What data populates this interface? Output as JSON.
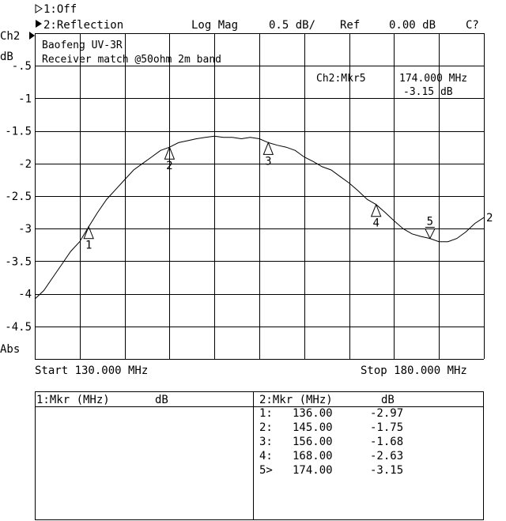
{
  "header": {
    "ch1_status": "1:Off",
    "ch2_status": "2:Reflection",
    "format": "Log Mag",
    "scale": "0.5 dB/",
    "ref_label": "Ref",
    "ref_value": "0.00 dB",
    "cal_status": "C?",
    "channel_label": "Ch2",
    "unit_label": "dB",
    "abs_label": "Abs"
  },
  "annotation": {
    "line1": "Baofeng UV-3R",
    "line2": "Receiver match @50ohm 2m band"
  },
  "active_marker": {
    "label": "Ch2:Mkr5",
    "freq": "174.000 MHz",
    "value": "-3.15 dB"
  },
  "footer": {
    "start": "Start 130.000 MHz",
    "stop": "Stop 180.000 MHz"
  },
  "marker_table": {
    "ch1_header_mkr": "1:Mkr (MHz)",
    "ch1_header_db": "dB",
    "ch2_header_mkr": "2:Mkr (MHz)",
    "ch2_header_db": "dB",
    "rows": [
      {
        "id": "1:",
        "freq": "136.00",
        "db": "-2.97"
      },
      {
        "id": "2:",
        "freq": "145.00",
        "db": "-1.75"
      },
      {
        "id": "3:",
        "freq": "156.00",
        "db": "-1.68"
      },
      {
        "id": "4:",
        "freq": "168.00",
        "db": "-2.63"
      },
      {
        "id": "5>",
        "freq": "174.00",
        "db": "-3.15"
      }
    ]
  },
  "chart_data": {
    "type": "line",
    "xlabel": "",
    "ylabel": "dB",
    "xlim": [
      130,
      180
    ],
    "ylim": [
      -5,
      0
    ],
    "y_ticks": [
      "-.5",
      "-1",
      "-1.5",
      "-2",
      "-2.5",
      "-3",
      "-3.5",
      "-4",
      "-4.5"
    ],
    "y_tick_values": [
      -0.5,
      -1,
      -1.5,
      -2,
      -2.5,
      -3,
      -3.5,
      -4,
      -4.5
    ],
    "x_divisions": 10,
    "grid": true,
    "trace_end_label": "2",
    "series": [
      {
        "x": [
          130,
          131,
          132,
          133,
          134,
          135,
          136,
          137,
          138,
          139,
          140,
          141,
          142,
          143,
          144,
          145,
          146,
          147,
          148,
          149,
          150,
          151,
          152,
          153,
          154,
          155,
          156,
          157,
          158,
          159,
          160,
          161,
          162,
          163,
          164,
          165,
          166,
          167,
          168,
          169,
          170,
          171,
          172,
          173,
          174,
          175,
          176,
          177,
          178,
          179,
          180
        ],
        "y": [
          -4.08,
          -3.95,
          -3.75,
          -3.55,
          -3.35,
          -3.2,
          -2.97,
          -2.75,
          -2.55,
          -2.4,
          -2.25,
          -2.1,
          -2.0,
          -1.9,
          -1.8,
          -1.75,
          -1.68,
          -1.65,
          -1.62,
          -1.6,
          -1.58,
          -1.6,
          -1.6,
          -1.62,
          -1.6,
          -1.62,
          -1.68,
          -1.72,
          -1.75,
          -1.8,
          -1.9,
          -1.97,
          -2.05,
          -2.1,
          -2.2,
          -2.3,
          -2.42,
          -2.55,
          -2.63,
          -2.75,
          -2.88,
          -3.0,
          -3.08,
          -3.12,
          -3.15,
          -3.2,
          -3.2,
          -3.15,
          -3.05,
          -2.92,
          -2.83
        ]
      }
    ],
    "markers": [
      {
        "label": "1",
        "x": 136,
        "y": -2.97,
        "direction": "up"
      },
      {
        "label": "2",
        "x": 145,
        "y": -1.75,
        "direction": "up"
      },
      {
        "label": "3",
        "x": 156,
        "y": -1.68,
        "direction": "up"
      },
      {
        "label": "4",
        "x": 168,
        "y": -2.63,
        "direction": "up"
      },
      {
        "label": "5",
        "x": 174,
        "y": -3.15,
        "direction": "down"
      }
    ]
  }
}
